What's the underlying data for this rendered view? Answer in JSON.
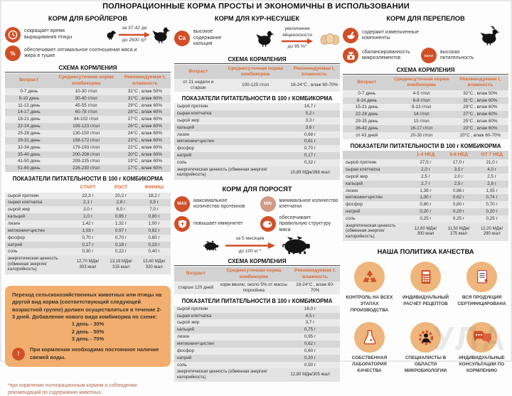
{
  "title": "ПОЛНОРАЦИОННЫЕ КОРМА ПРОСТЫ И ЭКОНОМИЧНЫ В ИСПОЛЬЗОВАНИИ",
  "watermark": "УЛА",
  "colors": {
    "accent": "#d14f26",
    "tan_circle": "#eeb67c",
    "table_header_text": "#dd6b35",
    "panel": "#f2ae6e"
  },
  "broilers": {
    "heading": "КОРМ ДЛЯ БРОЙЛЕРОВ",
    "benefit1": "сокращает время выращивания птицы",
    "percent_label": "%",
    "benefit2": "обеспечивает оптимальное соотношение мяса и жира в тушке",
    "growth_top": "за 37-42 дн",
    "growth_bottom": "до 2500 гр*",
    "schedule_heading": "СХЕМА КОРМЛЕНИЯ",
    "schedule": {
      "header": [
        "Возраст",
        "Среднесуточная норма комбикорма",
        "Рекомендуемая t, влажность"
      ],
      "rows": [
        [
          "0-7 день",
          "10-30 г/гол",
          "32°C , влаж 50%"
        ],
        [
          "8-10 день",
          "30-40 г/гол",
          "31°C , влаж 60%"
        ],
        [
          "11-13 день",
          "45-55 г/гол",
          "29°C , влаж 60%"
        ],
        [
          "14-17 день",
          "60-78 г/гол",
          "28°C , влаж 60%"
        ],
        [
          "18-21 день",
          "84-102 г/гол",
          "27°C , влаж 60%"
        ],
        [
          "22-24 день",
          "109-123 г/гол",
          "26°C , влаж 60%"
        ],
        [
          "25-28 день",
          "130-150 г/гол",
          "24°C , влаж 60%"
        ],
        [
          "29-31 день",
          "158-172 г/гол",
          "23°C , влаж 60%"
        ],
        [
          "32-34 день",
          "179-193 г/гол",
          "22°C , влаж 60%"
        ],
        [
          "35-40 день",
          "200-208 г/гол",
          "20°C , влаж 60%"
        ],
        [
          "41-50 день",
          "209-225 г/гол",
          "19°C , влаж 60%"
        ],
        [
          "51-60 день",
          "226-230 г/гол",
          "17°C , влаж 60%"
        ]
      ]
    },
    "nutrition_heading": "ПОКАЗАТЕЛИ ПИТАТЕЛЬНОСТИ В 100 г КОМБИКОРМА",
    "nutrition": {
      "header": [
        "",
        "СТАРТ",
        "РОСТ",
        "ФИНИШ"
      ],
      "rows": [
        [
          "сырой протеин",
          "22,3 г",
          "20,2 г",
          "18,2 г"
        ],
        [
          "сырая клетчатка",
          "2,1 г",
          "2,8 г",
          "3,5 г"
        ],
        [
          "сырой жир",
          "3,0 г",
          "6,0 г",
          "7,0 г"
        ],
        [
          "кальций",
          "1,0 г",
          "0,95 г",
          "0,80 г"
        ],
        [
          "лизин",
          "1,42 г",
          "1,32 г",
          "1,00 г"
        ],
        [
          "метионин+цистин",
          "1,03 г",
          "0,97 г",
          "0,82 г"
        ],
        [
          "фосфор",
          "0,70 г",
          "0,70 г",
          "0,60 г"
        ],
        [
          "натрий",
          "0,17 г",
          "0,18 г",
          "0,23 г"
        ],
        [
          "соль",
          "0,30 г",
          "0,22 г",
          "0,40 г"
        ]
      ],
      "footer_rows": [
        [
          "энергетическая ценность (обменная энергия/калорийность)",
          "12,70 МДж/ 303 ккал",
          "13,19 МДж/ 315 ккал",
          "13,40 МДж/ 320 ккал"
        ]
      ]
    },
    "notice_text": "Переход сельскохозяйственных животных или птицы на другой вид корма (соответствующий следующей возрастной группе) должен осуществляться в течение 2-3 дней. Добавление нового вида комбикорма по схеме:",
    "notice_scheme_1": "1 день - 30%",
    "notice_scheme_2": "2 день - 50%",
    "notice_scheme_3": "3 день - 70%",
    "warning_label": "!",
    "notice_warning": "При кормлении необходимо постоянное наличие свежей воды.",
    "footnote": "*при кормлении полнорационным кормом и соблюдении рекомендаций по содержанию животных."
  },
  "hens": {
    "heading": "КОРМ ДЛЯ КУР-НЕСУШЕК",
    "ca_label": "Ca",
    "benefit1": "высокое содержание кальция",
    "growth_top": "увеличение яйценоскости",
    "growth_bottom": "до 95 %*",
    "schedule_heading": "СХЕМА КОРМЛЕНИЯ",
    "schedule": {
      "header": [
        "Возраст",
        "Среднесуточная норма комбикорма",
        "Рекомендуемая t, влажность"
      ],
      "rows": [
        [
          "от 21 недели и старше",
          "100-125 г/гол",
          "18-24°C , влаж 60-70%"
        ]
      ]
    },
    "nutrition_heading": "ПОКАЗАТЕЛИ ПИТАТЕЛЬНОСТИ В 100 г КОМБИКОРМА",
    "nutrition": {
      "rows": [
        [
          "сырой протеин",
          "14,7 г"
        ],
        [
          "сырая клетчатка",
          "5,2 г"
        ],
        [
          "сырой жир",
          "3,3 г"
        ],
        [
          "кальций",
          "3,6 г"
        ],
        [
          "лизин",
          "0,68 г"
        ],
        [
          "метионин+цистин",
          "0,61 г"
        ],
        [
          "фосфор",
          "0,70 г"
        ],
        [
          "натрий",
          "0,17 г"
        ],
        [
          "соль",
          "0,32 г"
        ]
      ],
      "footer_rows": [
        [
          "энергетическая ценность (обменная энергия/ калорийность)",
          "10,89 МДж/268 ккал"
        ]
      ]
    }
  },
  "piglets": {
    "heading": "КОРМ ДЛЯ ПОРОСЯТ",
    "max_label": "MAX",
    "min_label": "MIN",
    "benefit1": "максимальное количество протеинов",
    "benefit2": "минимальное количество клетчатки",
    "benefit3": "повышает иммунитет",
    "benefit4": "обеспечивает правильную структуру мяса",
    "growth_top": "за 5 месяцев",
    "growth_bottom": "до 100 кг *",
    "schedule_heading": "СХЕМА КОРМЛЕНИЯ",
    "schedule": {
      "header": [
        "Возраст",
        "Среднесуточная норма комбикорма",
        "Рекомендуемая t, влажность"
      ],
      "rows": [
        [
          "старше 120 дней",
          "корм вволю, около 5% от массы поросёнка",
          "18-24°C , влаж 60-70%"
        ]
      ]
    },
    "nutrition_heading": "ПОКАЗАТЕЛИ ПИТАТЕЛЬНОСТИ В 100 г КОМБИКОРМА",
    "nutrition": {
      "rows": [
        [
          "сырой протеин",
          "16,0 г"
        ],
        [
          "сырая клетчатка",
          "4,5 г"
        ],
        [
          "сырой жир",
          "3,7 г"
        ],
        [
          "кальций",
          "0,75 г"
        ],
        [
          "лизин",
          "0,95 г"
        ],
        [
          "метионин+цистин",
          "0,62 г"
        ],
        [
          "фосфор",
          "0,60 г"
        ],
        [
          "натрий",
          "0,20 г"
        ],
        [
          "соль",
          "0,50 г"
        ]
      ],
      "footer_rows": [
        [
          "энергетическая ценность (обменная энергия/ калорийность)",
          "12,80 МДж/305 ккал"
        ]
      ]
    }
  },
  "quails": {
    "heading": "КОРМ ДЛЯ ПЕРЕПЕЛОВ",
    "benefit1": "содержит измельченные компоненты",
    "benefit2": "сбалансированность микроэлементов",
    "kcal_label": "ККАЛ",
    "benefit3": "высокая питательность",
    "schedule_heading": "СХЕМА КОРМЛЕНИЯ",
    "schedule": {
      "header": [
        "Возраст",
        "Среднесуточная норма комбикорма",
        "Рекомендуемая t, влажность"
      ],
      "rows": [
        [
          "0-7 день",
          "4-5 г/гол",
          "32°C , влаж 50%"
        ],
        [
          "8-14 день",
          "6-8 г/гол",
          "31°C , влаж 60%"
        ],
        [
          "15-21 день",
          "9-13 г/гол",
          "29°C , влаж 60%"
        ],
        [
          "22-28 день",
          "14 г/гол",
          "27°C , влаж 60%"
        ],
        [
          "29-35 день",
          "15 г/гол",
          "25°C , влаж 60%"
        ],
        [
          "36-42 день",
          "16-17 г/гол",
          "23°C , влаж 60%"
        ],
        [
          "от 43 дней",
          "20-30 г/гол",
          "20°C , влаж 60-70%"
        ]
      ]
    },
    "nutrition_heading": "ПОКАЗАТЕЛИ ПИТАТЕЛЬНОСТИ В 100 г КОМБИКОРМА",
    "nutrition": {
      "header": [
        "",
        "1-4 НЕД",
        "5-6 НЕД",
        "ОТ 7 НЕД"
      ],
      "rows": [
        [
          "сырой протеин",
          "27,5 г",
          "17,0 г",
          "21,0 г"
        ],
        [
          "сырая клетчатка",
          "2,0 г",
          "3,5 г",
          "4,0 г"
        ],
        [
          "сырой жир",
          "2,5 г",
          "2,0 г",
          "2,5 г"
        ],
        [
          "кальций",
          "2,7 г",
          "2,5 г",
          "2,8 г"
        ],
        [
          "лизин",
          "1,39 г",
          "0,86 г",
          "1,05 г"
        ],
        [
          "метионин+цистин",
          "1,00 г",
          "0,62 г",
          "0,74 г"
        ],
        [
          "фосфор",
          "0,80 г",
          "0,80 г",
          "0,70 г"
        ],
        [
          "натрий",
          "0,20 г",
          "0,20 г",
          "0,20 г"
        ],
        [
          "соль",
          "0,25 г",
          "0,25 г",
          "0,25 г"
        ]
      ],
      "footer_rows": [
        [
          "энергетическая ценность (обменная энергия/калорийность)",
          "12,60 МДж/ 300 ккал",
          "11,50 МДж/ 275 ккал",
          "12,20 МДж/ 290 ккал"
        ]
      ]
    }
  },
  "quality": {
    "heading": "НАША ПОЛИТИКА КАЧЕСТВА",
    "items": [
      {
        "icon": "recycle-icon",
        "caption": "КОНТРОЛЬ НА ВСЕХ ЭТАПАХ ПРОИЗВОДСТВА"
      },
      {
        "icon": "calculator-icon",
        "caption": "ИНДИВИДУАЛЬНЫЙ РАСЧЁТ РЕЦЕПТОВ"
      },
      {
        "icon": "certificate-icon",
        "caption": "ВСЯ ПРОДУКЦИЯ СЕРТИФИЦИРОВАНА"
      },
      {
        "icon": "flask-icon",
        "caption": "СОБСТВЕННАЯ ЛАБОРАТОРИЯ КАЧЕСТВА"
      },
      {
        "icon": "microbiology-specialist-icon",
        "caption": "СПЕЦИАЛИСТЫ В ОБЛАСТИ МИКРОБИОЛОГИИ"
      },
      {
        "icon": "consultation-icon",
        "caption": "ИНДИВИДУАЛЬНЫЕ КОНСУЛЬТАЦИИ ПО КОРМЛЕНИЮ"
      }
    ]
  }
}
